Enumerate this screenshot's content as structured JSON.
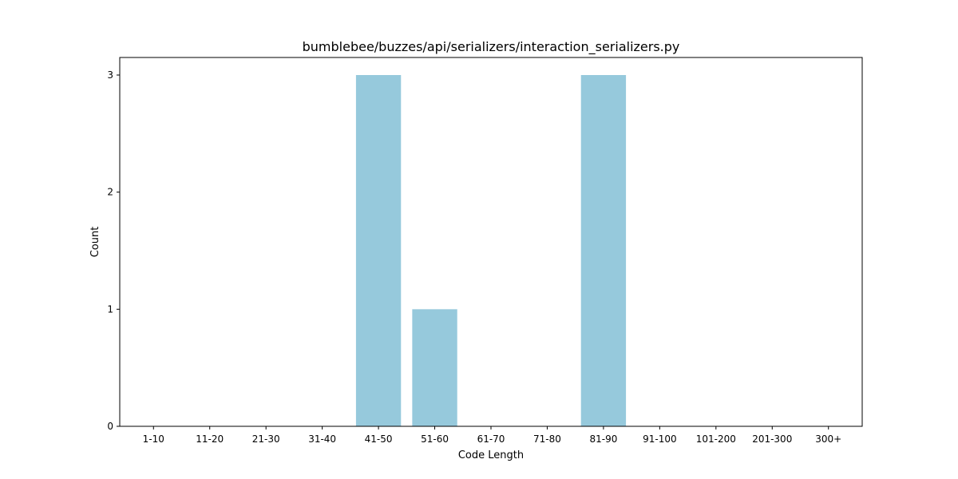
{
  "chart_data": {
    "type": "bar",
    "title": "bumblebee/buzzes/api/serializers/interaction_serializers.py",
    "xlabel": "Code Length",
    "ylabel": "Count",
    "categories": [
      "1-10",
      "11-20",
      "21-30",
      "31-40",
      "41-50",
      "51-60",
      "61-70",
      "71-80",
      "81-90",
      "91-100",
      "101-200",
      "201-300",
      "300+"
    ],
    "values": [
      0,
      0,
      0,
      0,
      3,
      1,
      0,
      0,
      3,
      0,
      0,
      0,
      0
    ],
    "ylim": [
      0,
      3.15
    ],
    "yticks": [
      0,
      1,
      2,
      3
    ],
    "grid": false,
    "legend": "none",
    "bar_color": "#96c9dc"
  }
}
